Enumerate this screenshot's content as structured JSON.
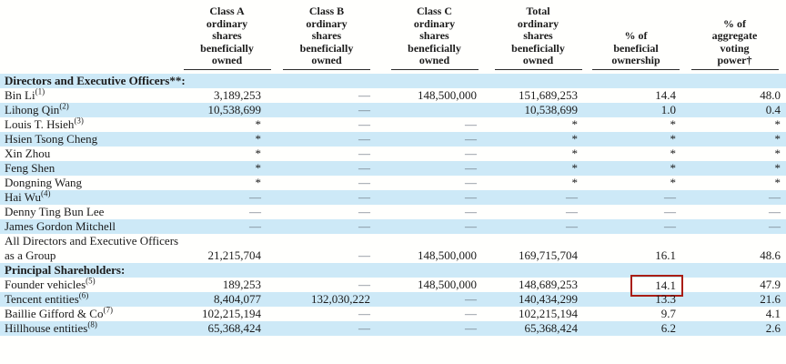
{
  "colors": {
    "stripe_blue": "#cde9f7",
    "highlight_red": "#a91e15",
    "text": "#1b1b1b",
    "dash_gray": "#66707c",
    "header_rule": "#2a2a2a"
  },
  "table": {
    "columns": [
      {
        "key": "name",
        "label": ""
      },
      {
        "key": "classA",
        "label": "Class A\nordinary\nshares\nbeneficially\nowned"
      },
      {
        "key": "classB",
        "label": "Class B\nordinary\nshares\nbeneficially\nowned"
      },
      {
        "key": "classC",
        "label": "Class C\nordinary\nshares\nbeneficially\nowned"
      },
      {
        "key": "total",
        "label": "Total\nordinary\nshares\nbeneficially\nowned"
      },
      {
        "key": "pctOwnership",
        "label": "% of\nbeneficial\nownership"
      },
      {
        "key": "pctVoting",
        "label": "% of\naggregate\nvoting\npower†"
      }
    ],
    "rows": [
      {
        "type": "section",
        "name": "Directors and Executive Officers**:",
        "shaded": true
      },
      {
        "type": "data",
        "name": "Bin Li",
        "sup": "(1)",
        "shaded": false,
        "classA": "3,189,253",
        "classB": "—",
        "classC": "148,500,000",
        "total": "151,689,253",
        "pctOwnership": "14.4",
        "pctVoting": "48.0"
      },
      {
        "type": "data",
        "name": "Lihong Qin",
        "sup": "(2)",
        "shaded": true,
        "classA": "10,538,699",
        "classB": "—",
        "classC": "",
        "total": "10,538,699",
        "pctOwnership": "1.0",
        "pctVoting": "0.4"
      },
      {
        "type": "data",
        "name": "Louis T. Hsieh",
        "sup": "(3)",
        "shaded": false,
        "classA": "*",
        "classB": "—",
        "classC": "—",
        "total": "*",
        "pctOwnership": "*",
        "pctVoting": "*"
      },
      {
        "type": "data",
        "name": "Hsien Tsong Cheng",
        "sup": "",
        "shaded": true,
        "classA": "*",
        "classB": "—",
        "classC": "—",
        "total": "*",
        "pctOwnership": "*",
        "pctVoting": "*"
      },
      {
        "type": "data",
        "name": "Xin Zhou",
        "sup": "",
        "shaded": false,
        "classA": "*",
        "classB": "—",
        "classC": "—",
        "total": "*",
        "pctOwnership": "*",
        "pctVoting": "*"
      },
      {
        "type": "data",
        "name": "Feng Shen",
        "sup": "",
        "shaded": true,
        "classA": "*",
        "classB": "—",
        "classC": "—",
        "total": "*",
        "pctOwnership": "*",
        "pctVoting": "*"
      },
      {
        "type": "data",
        "name": "Dongning Wang",
        "sup": "",
        "shaded": false,
        "classA": "*",
        "classB": "—",
        "classC": "—",
        "total": "*",
        "pctOwnership": "*",
        "pctVoting": "*"
      },
      {
        "type": "data",
        "name": "Hai Wu",
        "sup": "(4)",
        "shaded": true,
        "classA": "—",
        "classB": "—",
        "classC": "—",
        "total": "—",
        "pctOwnership": "—",
        "pctVoting": "—"
      },
      {
        "type": "data",
        "name": "Denny Ting Bun Lee",
        "sup": "",
        "shaded": false,
        "classA": "—",
        "classB": "—",
        "classC": "—",
        "total": "—",
        "pctOwnership": "—",
        "pctVoting": "—"
      },
      {
        "type": "data",
        "name": "James Gordon Mitchell",
        "sup": "",
        "shaded": true,
        "classA": "—",
        "classB": "—",
        "classC": "—",
        "total": "—",
        "pctOwnership": "—",
        "pctVoting": "—"
      },
      {
        "type": "data",
        "name": "All Directors and Executive Officers as a Group",
        "sup": "",
        "shaded": false,
        "classA": "21,215,704",
        "classB": "—",
        "classC": "148,500,000",
        "total": "169,715,704",
        "pctOwnership": "16.1",
        "pctVoting": "48.6"
      },
      {
        "type": "section",
        "name": "Principal Shareholders:",
        "shaded": true
      },
      {
        "type": "data",
        "name": "Founder vehicles",
        "sup": "(5)",
        "shaded": false,
        "classA": "189,253",
        "classB": "—",
        "classC": "148,500,000",
        "total": "148,689,253",
        "pctOwnership": "14.1",
        "pctVoting": "47.9",
        "highlight": "pctOwnership"
      },
      {
        "type": "data",
        "name": "Tencent entities",
        "sup": "(6)",
        "shaded": true,
        "classA": "8,404,077",
        "classB": "132,030,222",
        "classC": "—",
        "total": "140,434,299",
        "pctOwnership": "13.3",
        "pctVoting": "21.6"
      },
      {
        "type": "data",
        "name": "Baillie Gifford & Co",
        "sup": "(7)",
        "shaded": false,
        "classA": "102,215,194",
        "classB": "—",
        "classC": "—",
        "total": "102,215,194",
        "pctOwnership": "9.7",
        "pctVoting": "4.1"
      },
      {
        "type": "data",
        "name": "Hillhouse entities",
        "sup": "(8)",
        "shaded": true,
        "classA": "65,368,424",
        "classB": "—",
        "classC": "—",
        "total": "65,368,424",
        "pctOwnership": "6.2",
        "pctVoting": "2.6"
      }
    ]
  }
}
